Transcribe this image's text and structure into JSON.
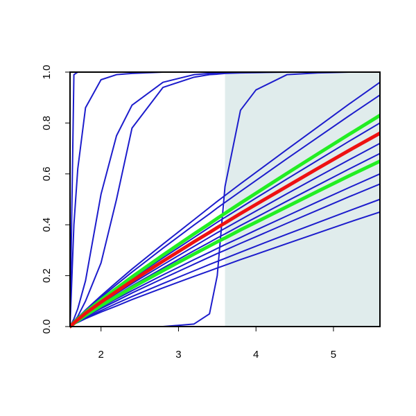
{
  "chart_data": {
    "type": "line",
    "x": [
      1.6,
      1.65,
      1.7,
      1.8,
      2.0,
      2.2,
      2.4,
      2.8,
      3.2,
      3.4,
      3.5,
      3.6,
      3.8,
      4.0,
      4.4,
      4.8,
      5.2,
      5.6
    ],
    "xlim": [
      1.6,
      5.6
    ],
    "xticks": [
      2,
      3,
      4,
      5
    ],
    "ylim": [
      0,
      1
    ],
    "yticks": [
      {
        "value": 0,
        "label": "0.0"
      },
      0.2,
      0.4,
      0.6,
      0.8,
      {
        "value": 1,
        "label": "1.0"
      }
    ],
    "shaded_x": [
      3.6,
      5.6
    ],
    "shade_color": "#e0ecec",
    "series": [
      {
        "color": "#1c1ccc",
        "values": [
          0,
          0.99,
          1,
          1,
          1,
          1,
          1,
          1,
          1,
          1,
          1,
          1,
          1,
          1,
          1,
          1,
          1,
          1
        ]
      },
      {
        "color": "#1c1ccc",
        "values": [
          0,
          0.4,
          0.62,
          0.86,
          0.97,
          0.99,
          0.995,
          1,
          1,
          1,
          1,
          1,
          1,
          1,
          1,
          1,
          1,
          1
        ]
      },
      {
        "color": "#1c1ccc",
        "values": [
          0,
          0.03,
          0.07,
          0.18,
          0.52,
          0.75,
          0.87,
          0.96,
          0.99,
          0.995,
          0.997,
          0.998,
          0.999,
          1,
          1,
          1,
          1,
          1
        ]
      },
      {
        "color": "#1c1ccc",
        "values": [
          0,
          0.02,
          0.04,
          0.1,
          0.25,
          0.5,
          0.78,
          0.94,
          0.98,
          0.99,
          0.992,
          0.995,
          0.997,
          0.998,
          1,
          1,
          1,
          1
        ]
      },
      {
        "color": "#1c1ccc",
        "values": [
          0,
          0,
          0,
          0,
          0,
          0,
          0,
          0,
          0.01,
          0.05,
          0.2,
          0.55,
          0.85,
          0.93,
          0.99,
          0.997,
          1,
          1
        ]
      },
      {
        "color": "#1c1ccc",
        "values": [
          0,
          0.018,
          0.035,
          0.065,
          0.121,
          0.174,
          0.226,
          0.324,
          0.42,
          0.468,
          0.492,
          0.515,
          0.561,
          0.606,
          0.696,
          0.785,
          0.874,
          0.96
        ]
      },
      {
        "color": "#1c1ccc",
        "values": [
          0,
          0.017,
          0.033,
          0.062,
          0.115,
          0.165,
          0.214,
          0.308,
          0.399,
          0.443,
          0.466,
          0.488,
          0.531,
          0.574,
          0.66,
          0.744,
          0.828,
          0.91
        ]
      },
      {
        "color": "#1c1ccc",
        "values": [
          0,
          0.015,
          0.029,
          0.054,
          0.101,
          0.145,
          0.188,
          0.27,
          0.35,
          0.39,
          0.41,
          0.429,
          0.467,
          0.505,
          0.58,
          0.654,
          0.728,
          0.8
        ]
      },
      {
        "color": "#1c1ccc",
        "values": [
          0,
          0.014,
          0.026,
          0.049,
          0.091,
          0.13,
          0.169,
          0.243,
          0.315,
          0.351,
          0.369,
          0.386,
          0.42,
          0.454,
          0.522,
          0.589,
          0.655,
          0.72
        ]
      },
      {
        "color": "#1c1ccc",
        "values": [
          0,
          0.013,
          0.024,
          0.046,
          0.086,
          0.123,
          0.16,
          0.23,
          0.298,
          0.331,
          0.348,
          0.364,
          0.397,
          0.429,
          0.493,
          0.556,
          0.619,
          0.68
        ]
      },
      {
        "color": "#1c1ccc",
        "values": [
          0,
          0.011,
          0.022,
          0.041,
          0.076,
          0.109,
          0.141,
          0.203,
          0.263,
          0.292,
          0.307,
          0.322,
          0.35,
          0.379,
          0.435,
          0.491,
          0.546,
          0.6
        ]
      },
      {
        "color": "#1c1ccc",
        "values": [
          0,
          0.011,
          0.02,
          0.038,
          0.071,
          0.101,
          0.132,
          0.189,
          0.245,
          0.273,
          0.287,
          0.3,
          0.327,
          0.353,
          0.406,
          0.458,
          0.51,
          0.56
        ]
      },
      {
        "color": "#1c1ccc",
        "values": [
          0,
          0.01,
          0.018,
          0.034,
          0.063,
          0.091,
          0.118,
          0.169,
          0.219,
          0.244,
          0.256,
          0.268,
          0.292,
          0.316,
          0.363,
          0.409,
          0.455,
          0.5
        ]
      },
      {
        "color": "#1c1ccc",
        "values": [
          0,
          0.009,
          0.016,
          0.031,
          0.057,
          0.081,
          0.106,
          0.152,
          0.197,
          0.219,
          0.23,
          0.241,
          0.263,
          0.284,
          0.326,
          0.368,
          0.41,
          0.45
        ]
      },
      {
        "color": "#22ee22",
        "values": [
          0,
          0.016,
          0.03,
          0.056,
          0.105,
          0.15,
          0.195,
          0.281,
          0.364,
          0.404,
          0.425,
          0.445,
          0.485,
          0.524,
          0.602,
          0.679,
          0.755,
          0.83
        ]
      },
      {
        "color": "#22ee22",
        "values": [
          0,
          0.012,
          0.023,
          0.044,
          0.082,
          0.118,
          0.153,
          0.22,
          0.285,
          0.317,
          0.333,
          0.348,
          0.38,
          0.41,
          0.471,
          0.532,
          0.592,
          0.65
        ]
      },
      {
        "color": "#ee1111",
        "values": [
          0,
          0.014,
          0.027,
          0.052,
          0.096,
          0.138,
          0.179,
          0.257,
          0.333,
          0.37,
          0.389,
          0.407,
          0.444,
          0.48,
          0.551,
          0.622,
          0.692,
          0.76
        ]
      }
    ]
  }
}
